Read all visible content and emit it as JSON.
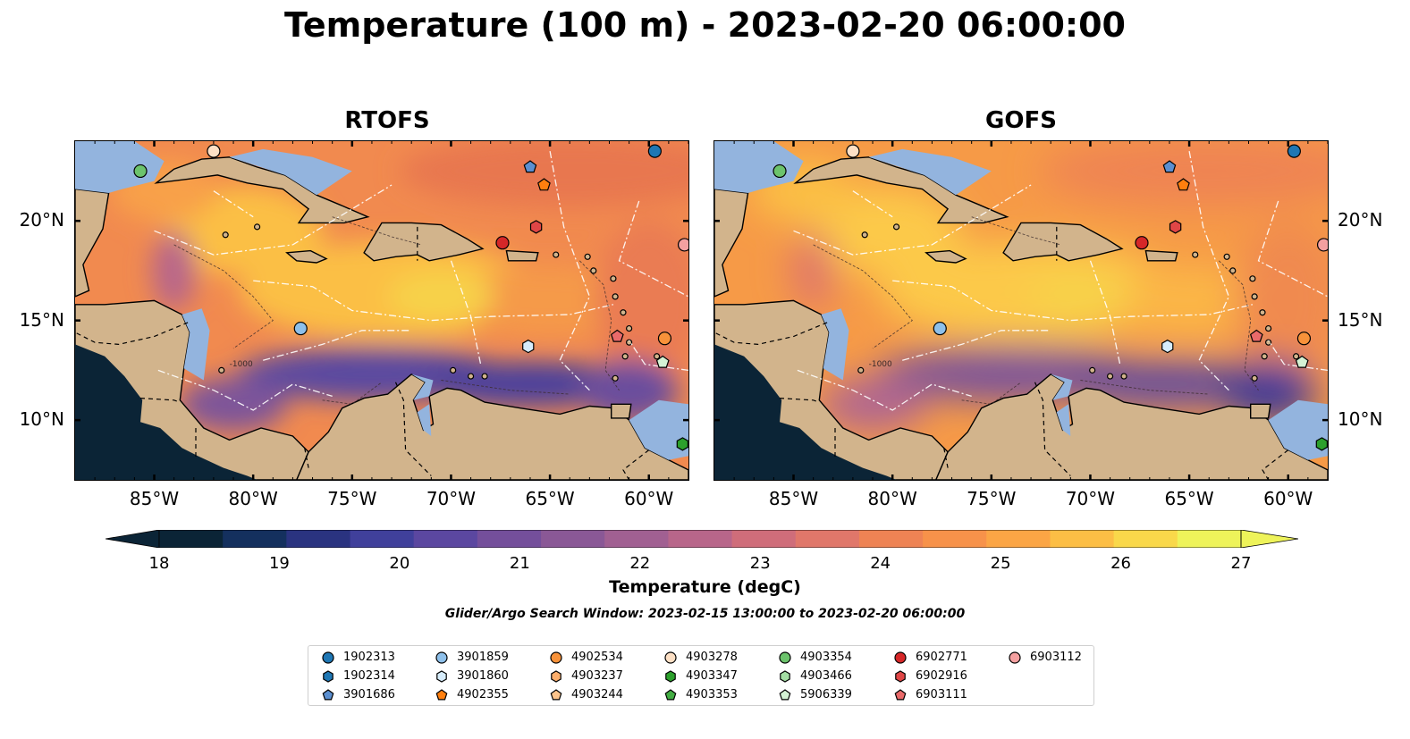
{
  "title": "Temperature (100 m) - 2023-02-20 06:00:00",
  "panels": [
    {
      "title": "RTOFS"
    },
    {
      "title": "GOFS"
    }
  ],
  "axes": {
    "lon_ticks": [
      "85°W",
      "80°W",
      "75°W",
      "70°W",
      "65°W",
      "60°W"
    ],
    "lat_ticks": [
      "20°N",
      "15°N",
      "10°N"
    ],
    "lon_range": [
      -89,
      -58
    ],
    "lat_range": [
      7,
      24
    ]
  },
  "colorbar": {
    "label": "Temperature (degC)",
    "min": 18,
    "max": 27,
    "ticks": [
      "18",
      "19",
      "20",
      "21",
      "22",
      "23",
      "24",
      "25",
      "26",
      "27"
    ],
    "colors": [
      "#0b2436",
      "#14305e",
      "#2a3380",
      "#40409b",
      "#5b47a0",
      "#744f9b",
      "#8a5896",
      "#a16092",
      "#b8668a",
      "#cf6d7a",
      "#e0776a",
      "#ee8354",
      "#f7924a",
      "#fba545",
      "#fcbe45",
      "#f9d84a",
      "#eef35a"
    ]
  },
  "contour_labels": [
    "-1000"
  ],
  "search_window": "Glider/Argo Search Window: 2023-02-15 13:00:00 to 2023-02-20 06:00:00",
  "legend": [
    {
      "id": "1902313",
      "marker": "circle",
      "color": "#1f77b4"
    },
    {
      "id": "1902314",
      "marker": "hexagon",
      "color": "#1f77b4"
    },
    {
      "id": "3901686",
      "marker": "pentagon",
      "color": "#5b8fd0"
    },
    {
      "id": "3901859",
      "marker": "circle",
      "color": "#8ec0ea"
    },
    {
      "id": "3901860",
      "marker": "hexagon",
      "color": "#d6ecfb"
    },
    {
      "id": "4902355",
      "marker": "pentagon",
      "color": "#ff7f0e"
    },
    {
      "id": "4902534",
      "marker": "circle",
      "color": "#f8923a"
    },
    {
      "id": "4903237",
      "marker": "hexagon",
      "color": "#fdae6b"
    },
    {
      "id": "4903244",
      "marker": "pentagon",
      "color": "#fdc48c"
    },
    {
      "id": "4903278",
      "marker": "circle",
      "color": "#fde0c5"
    },
    {
      "id": "4903347",
      "marker": "hexagon",
      "color": "#2ca02c"
    },
    {
      "id": "4903353",
      "marker": "pentagon",
      "color": "#43ad43"
    },
    {
      "id": "4903354",
      "marker": "circle",
      "color": "#6cc36c"
    },
    {
      "id": "4903466",
      "marker": "hexagon",
      "color": "#a4dea4"
    },
    {
      "id": "5906339",
      "marker": "pentagon",
      "color": "#d4f2d4"
    },
    {
      "id": "6902771",
      "marker": "circle",
      "color": "#d62728"
    },
    {
      "id": "6902916",
      "marker": "hexagon",
      "color": "#e04646"
    },
    {
      "id": "6903111",
      "marker": "pentagon",
      "color": "#ea6a6a"
    },
    {
      "id": "6903112",
      "marker": "circle",
      "color": "#f4a0a0"
    }
  ],
  "floats": [
    {
      "id": "4903278",
      "lon": -82.0,
      "lat": 23.5
    },
    {
      "id": "4903354",
      "lon": -85.7,
      "lat": 22.5
    },
    {
      "id": "1902313",
      "lon": -59.7,
      "lat": 23.5
    },
    {
      "id": "3901686",
      "lon": -66.0,
      "lat": 22.7
    },
    {
      "id": "4902355",
      "lon": -65.3,
      "lat": 21.8
    },
    {
      "id": "6902916",
      "lon": -65.7,
      "lat": 19.7
    },
    {
      "id": "6902771",
      "lon": -67.4,
      "lat": 18.9
    },
    {
      "id": "6903112",
      "lon": -58.2,
      "lat": 18.8
    },
    {
      "id": "3901859",
      "lon": -77.6,
      "lat": 14.6
    },
    {
      "id": "3901860",
      "lon": -66.1,
      "lat": 13.7
    },
    {
      "id": "6903111",
      "lon": -61.6,
      "lat": 14.2
    },
    {
      "id": "4902534",
      "lon": -59.2,
      "lat": 14.1
    },
    {
      "id": "5906339",
      "lon": -59.3,
      "lat": 12.9
    },
    {
      "id": "4903347",
      "lon": -58.3,
      "lat": 8.8
    }
  ]
}
